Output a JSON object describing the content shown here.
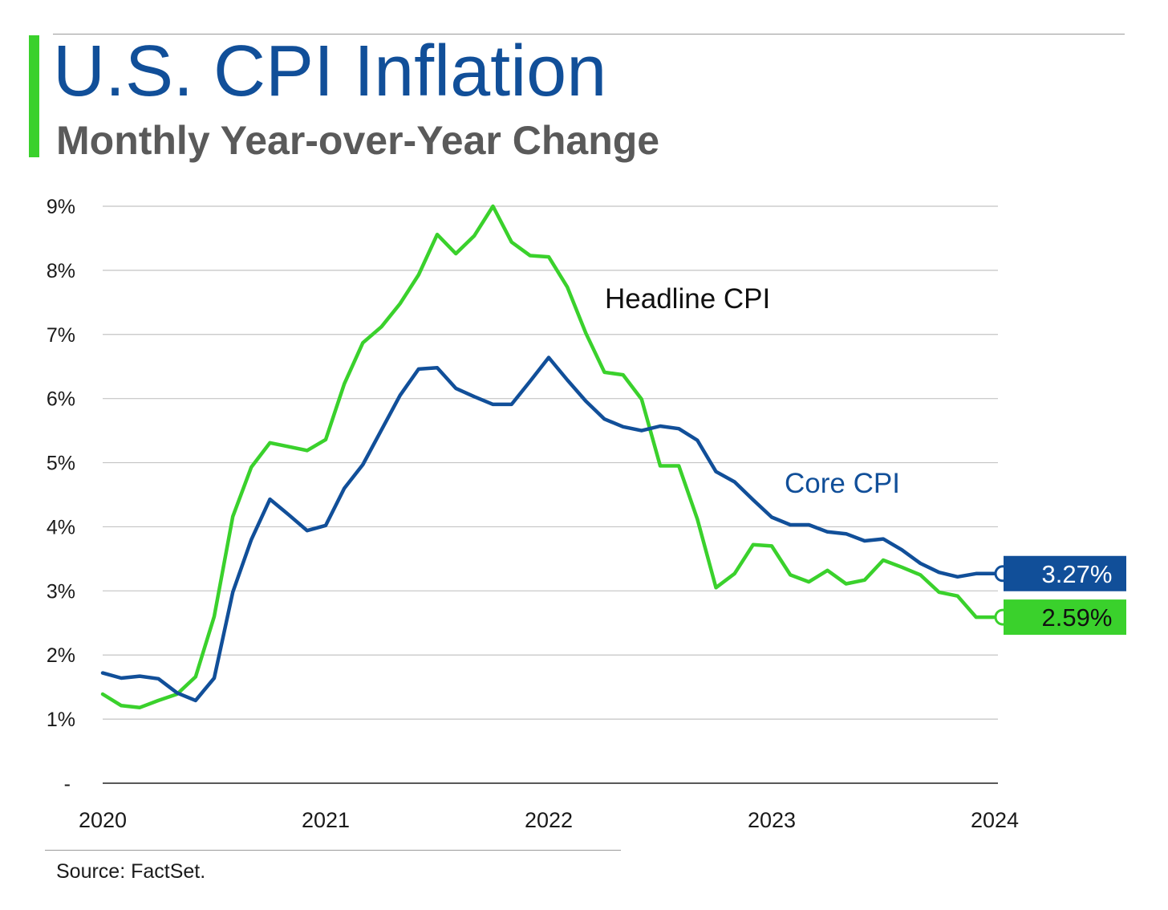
{
  "header": {
    "title": "U.S. CPI Inflation",
    "subtitle": "Monthly Year-over-Year Change"
  },
  "footer": {
    "source": "Source: FactSet."
  },
  "colors": {
    "headline": "#3ad12c",
    "core": "#114f99",
    "title": "#114f99",
    "subtitle": "#5a5a5a"
  },
  "chart_data": {
    "type": "line",
    "title": "U.S. CPI Inflation",
    "subtitle": "Monthly Year-over-Year Change",
    "xlabel": "",
    "ylabel": "",
    "x_tick_labels": [
      "2020",
      "2021",
      "2022",
      "2023",
      "2024"
    ],
    "y_tick_labels": [
      "-",
      "1%",
      "2%",
      "3%",
      "4%",
      "5%",
      "6%",
      "7%",
      "8%",
      "9%"
    ],
    "ylim": [
      0,
      9
    ],
    "grid": true,
    "legend": "direct labels on lines",
    "x": [
      "2020-01",
      "2020-02",
      "2020-03",
      "2020-04",
      "2020-05",
      "2020-06",
      "2020-07",
      "2020-08",
      "2020-09",
      "2020-10",
      "2020-11",
      "2020-12",
      "2021-01",
      "2021-02",
      "2021-03",
      "2021-04",
      "2021-05",
      "2021-06",
      "2021-07",
      "2021-08",
      "2021-09",
      "2021-10",
      "2021-11",
      "2021-12",
      "2022-01",
      "2022-02",
      "2022-03",
      "2022-04",
      "2022-05",
      "2022-06",
      "2022-07",
      "2022-08",
      "2022-09",
      "2022-10",
      "2022-11",
      "2022-12",
      "2023-01",
      "2023-02",
      "2023-03",
      "2023-04",
      "2023-05",
      "2023-06",
      "2023-07",
      "2023-08",
      "2023-09",
      "2023-10",
      "2023-11",
      "2023-12",
      "2024-01"
    ],
    "series": [
      {
        "name": "Headline CPI",
        "color": "#3ad12c",
        "end_label": "2.59%",
        "values": [
          1.39,
          1.21,
          1.18,
          1.29,
          1.39,
          1.66,
          2.6,
          4.16,
          4.93,
          5.31,
          5.25,
          5.19,
          5.36,
          6.23,
          6.87,
          7.12,
          7.48,
          7.93,
          8.56,
          8.26,
          8.54,
          9.0,
          8.44,
          8.23,
          8.21,
          7.74,
          7.02,
          6.41,
          6.37,
          5.99,
          4.95,
          4.95,
          4.12,
          3.05,
          3.27,
          3.72,
          3.7,
          3.25,
          3.14,
          3.32,
          3.11,
          3.17,
          3.48,
          3.37,
          3.25,
          2.98,
          2.92,
          2.59,
          2.59
        ]
      },
      {
        "name": "Core CPI",
        "color": "#114f99",
        "end_label": "3.27%",
        "values": [
          1.72,
          1.64,
          1.67,
          1.63,
          1.41,
          1.29,
          1.64,
          2.98,
          3.8,
          4.43,
          4.19,
          3.94,
          4.02,
          4.6,
          4.97,
          5.51,
          6.05,
          6.46,
          6.48,
          6.16,
          6.03,
          5.91,
          5.91,
          6.27,
          6.64,
          6.29,
          5.96,
          5.68,
          5.56,
          5.5,
          5.57,
          5.53,
          5.35,
          4.86,
          4.7,
          4.42,
          4.15,
          4.03,
          4.03,
          3.92,
          3.89,
          3.78,
          3.81,
          3.64,
          3.43,
          3.29,
          3.22,
          3.27,
          3.27
        ]
      }
    ]
  }
}
